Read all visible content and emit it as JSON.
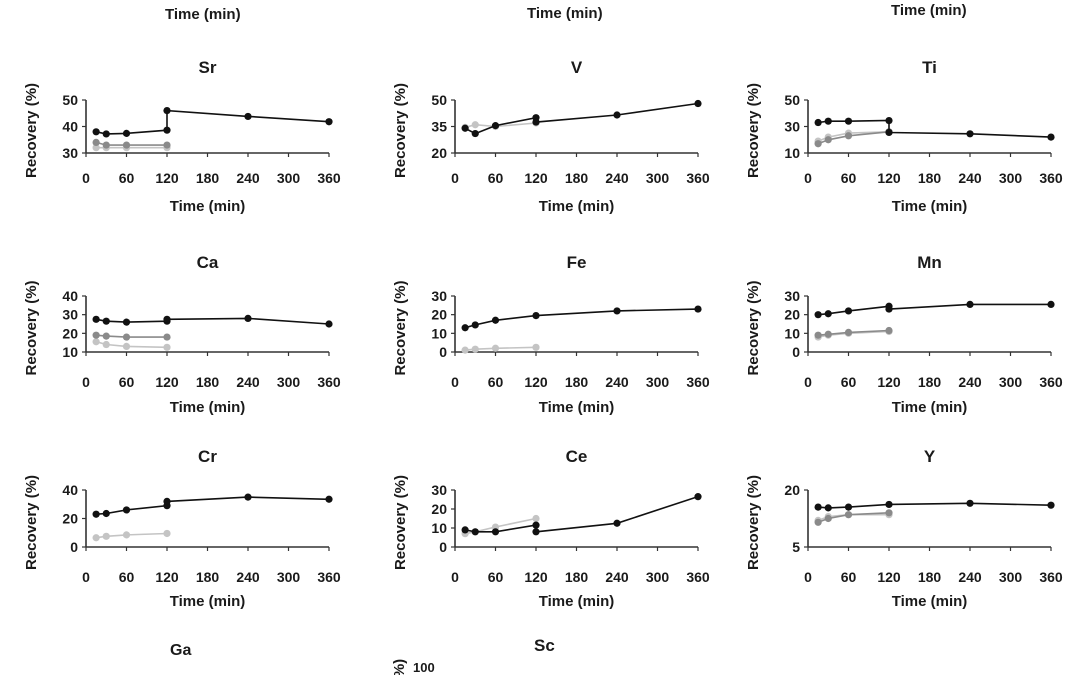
{
  "top_axis_labels": [
    "Time (min)",
    "Time (min)",
    "Time (min)"
  ],
  "bottom_titles": [
    "Ga",
    "Sc"
  ],
  "bottom_partial_tick": "100",
  "colors": {
    "series_1": "#111111",
    "series_2": "#8a8a8a",
    "series_3": "#c4c4c4"
  },
  "chart_data": [
    {
      "type": "line",
      "title": "Sr",
      "xlabel": "Time (min)",
      "ylabel": "Recovery (%)",
      "xlim": [
        0,
        360
      ],
      "ylim": [
        30,
        50
      ],
      "xticks": [
        0,
        60,
        120,
        180,
        240,
        300,
        360
      ],
      "yticks": [
        30,
        40,
        50
      ],
      "series": [
        {
          "x": [
            15,
            30,
            60,
            120,
            120,
            240,
            360
          ],
          "y": [
            38,
            37.2,
            37.4,
            38.6,
            46,
            43.8,
            41.8
          ],
          "color": "#111111"
        },
        {
          "x": [
            15,
            30,
            60,
            120
          ],
          "y": [
            34,
            33,
            33,
            33
          ],
          "color": "#8a8a8a"
        },
        {
          "x": [
            15,
            30,
            60,
            120
          ],
          "y": [
            32,
            32,
            32,
            32
          ],
          "color": "#c4c4c4"
        }
      ]
    },
    {
      "type": "line",
      "title": "V",
      "xlabel": "Time (min)",
      "ylabel": "Recovery (%)",
      "xlim": [
        0,
        360
      ],
      "ylim": [
        20,
        50
      ],
      "xticks": [
        0,
        60,
        120,
        180,
        240,
        300,
        360
      ],
      "yticks": [
        20,
        35,
        50
      ],
      "series": [
        {
          "x": [
            15,
            30,
            60,
            120,
            120,
            240,
            360
          ],
          "y": [
            34,
            31,
            35.5,
            40,
            37.5,
            41.5,
            48
          ],
          "color": "#111111"
        },
        {
          "x": [
            15,
            30,
            60,
            120
          ],
          "y": [
            34.5,
            36,
            35,
            37
          ],
          "color": "#c4c4c4"
        }
      ]
    },
    {
      "type": "line",
      "title": "Ti",
      "xlabel": "Time (min)",
      "ylabel": "Recovery (%)",
      "xlim": [
        0,
        360
      ],
      "ylim": [
        10,
        50
      ],
      "xticks": [
        0,
        60,
        120,
        180,
        240,
        300,
        360
      ],
      "yticks": [
        10,
        30,
        50
      ],
      "series": [
        {
          "x": [
            15,
            30,
            60,
            120,
            120,
            240,
            360
          ],
          "y": [
            33,
            34,
            34,
            34.5,
            25.5,
            24.5,
            22
          ],
          "color": "#111111"
        },
        {
          "x": [
            15,
            30,
            60,
            120
          ],
          "y": [
            17,
            20,
            23,
            26
          ],
          "color": "#8a8a8a"
        },
        {
          "x": [
            15,
            30,
            60,
            120
          ],
          "y": [
            19,
            22,
            25,
            26
          ],
          "color": "#c4c4c4"
        }
      ]
    },
    {
      "type": "line",
      "title": "Ca",
      "xlabel": "Time (min)",
      "ylabel": "Recovery (%)",
      "xlim": [
        0,
        360
      ],
      "ylim": [
        10,
        40
      ],
      "xticks": [
        0,
        60,
        120,
        180,
        240,
        300,
        360
      ],
      "yticks": [
        10,
        20,
        30,
        40
      ],
      "series": [
        {
          "x": [
            15,
            30,
            60,
            120,
            120,
            240,
            360
          ],
          "y": [
            27.5,
            26.5,
            26,
            26.5,
            27.5,
            28,
            25
          ],
          "color": "#111111"
        },
        {
          "x": [
            15,
            30,
            60,
            120
          ],
          "y": [
            19,
            18.5,
            18,
            18
          ],
          "color": "#8a8a8a"
        },
        {
          "x": [
            15,
            30,
            60,
            120
          ],
          "y": [
            15.5,
            14,
            13,
            12.5
          ],
          "color": "#c4c4c4"
        }
      ]
    },
    {
      "type": "line",
      "title": "Fe",
      "xlabel": "Time (min)",
      "ylabel": "Recovery (%)",
      "xlim": [
        0,
        360
      ],
      "ylim": [
        0,
        30
      ],
      "xticks": [
        0,
        60,
        120,
        180,
        240,
        300,
        360
      ],
      "yticks": [
        0,
        10,
        20,
        30
      ],
      "series": [
        {
          "x": [
            15,
            30,
            60,
            120,
            240,
            360
          ],
          "y": [
            13,
            14.5,
            17,
            19.5,
            22,
            23
          ],
          "color": "#111111"
        },
        {
          "x": [
            15,
            30,
            60,
            120
          ],
          "y": [
            1,
            1.5,
            2,
            2.5
          ],
          "color": "#c4c4c4"
        }
      ]
    },
    {
      "type": "line",
      "title": "Mn",
      "xlabel": "Time (min)",
      "ylabel": "Recovery (%)",
      "xlim": [
        0,
        360
      ],
      "ylim": [
        0,
        30
      ],
      "xticks": [
        0,
        60,
        120,
        180,
        240,
        300,
        360
      ],
      "yticks": [
        0,
        10,
        20,
        30
      ],
      "series": [
        {
          "x": [
            15,
            30,
            60,
            120,
            120,
            240,
            360
          ],
          "y": [
            20,
            20.5,
            22,
            24.5,
            23,
            25.5,
            25.5
          ],
          "color": "#111111"
        },
        {
          "x": [
            15,
            30,
            60,
            120
          ],
          "y": [
            9,
            9.5,
            10.5,
            11.5
          ],
          "color": "#8a8a8a"
        },
        {
          "x": [
            15,
            30,
            60,
            120
          ],
          "y": [
            8,
            9,
            10,
            11
          ],
          "color": "#c4c4c4"
        }
      ]
    },
    {
      "type": "line",
      "title": "Cr",
      "xlabel": "Time (min)",
      "ylabel": "Recovery (%)",
      "xlim": [
        0,
        360
      ],
      "ylim": [
        0,
        40
      ],
      "xticks": [
        0,
        60,
        120,
        180,
        240,
        300,
        360
      ],
      "yticks": [
        0,
        20,
        40
      ],
      "series": [
        {
          "x": [
            15,
            30,
            60,
            120,
            120,
            240,
            360
          ],
          "y": [
            23,
            23.5,
            26,
            29,
            32,
            35,
            33.5
          ],
          "color": "#111111"
        },
        {
          "x": [
            15,
            30,
            60,
            120
          ],
          "y": [
            6.5,
            7.5,
            8.5,
            9.5
          ],
          "color": "#c4c4c4"
        }
      ]
    },
    {
      "type": "line",
      "title": "Ce",
      "xlabel": "Time (min)",
      "ylabel": "Recovery (%)",
      "xlim": [
        0,
        360
      ],
      "ylim": [
        0,
        30
      ],
      "xticks": [
        0,
        60,
        120,
        180,
        240,
        300,
        360
      ],
      "yticks": [
        0,
        10,
        20,
        30
      ],
      "series": [
        {
          "x": [
            15,
            30,
            60,
            120,
            120,
            240,
            360
          ],
          "y": [
            9,
            8,
            8,
            11.5,
            8,
            12.5,
            26.5
          ],
          "color": "#111111"
        },
        {
          "x": [
            15,
            30,
            60,
            120
          ],
          "y": [
            7,
            8,
            10.5,
            15
          ],
          "color": "#c4c4c4"
        }
      ]
    },
    {
      "type": "line",
      "title": "Y",
      "xlabel": "Time (min)",
      "ylabel": "Recovery (%)",
      "xlim": [
        0,
        360
      ],
      "ylim": [
        5,
        20
      ],
      "xticks": [
        0,
        60,
        120,
        180,
        240,
        300,
        360
      ],
      "yticks": [
        5,
        20
      ],
      "series": [
        {
          "x": [
            15,
            30,
            60,
            120,
            240,
            360
          ],
          "y": [
            15.5,
            15.3,
            15.5,
            16.2,
            16.5,
            16
          ],
          "color": "#111111"
        },
        {
          "x": [
            15,
            30,
            60,
            120
          ],
          "y": [
            11.5,
            12.5,
            13.5,
            14
          ],
          "color": "#8a8a8a"
        },
        {
          "x": [
            15,
            30,
            60,
            120
          ],
          "y": [
            12,
            13,
            13.5,
            13.5
          ],
          "color": "#c4c4c4"
        }
      ]
    }
  ]
}
